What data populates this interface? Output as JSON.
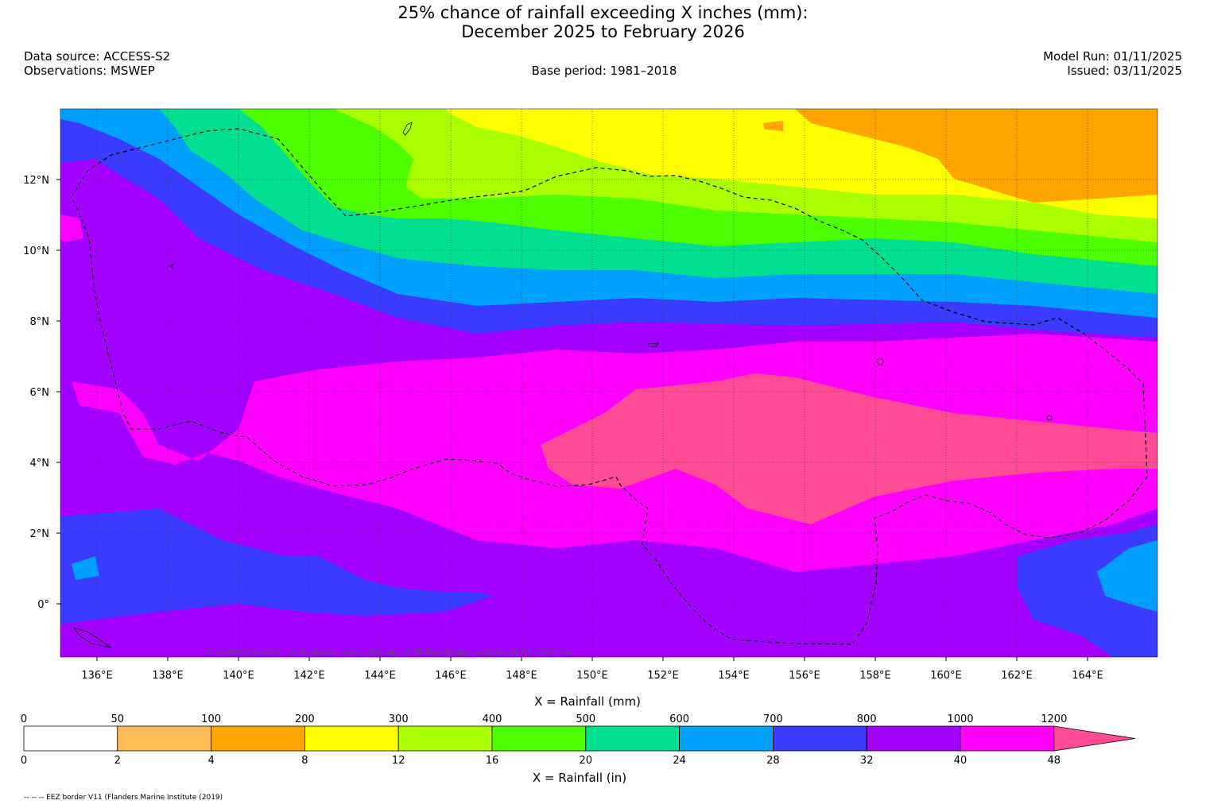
{
  "title_line1": "25% chance of rainfall exceeding X inches (mm):",
  "title_line2": "December 2025 to February 2026",
  "data_source": "Data source: ACCESS-S2",
  "observations": "Observations: MSWEP",
  "base_period": "Base period: 1981–2018",
  "model_run": "Model Run: 01/11/2025",
  "issued": "Issued: 03/11/2025",
  "copyright": "© Commonwealth of Australia 2025, Bureau of Meteorology, supported by COSPPac",
  "footnote": "-- -- -- EEZ border V11 (Flanders Marine Institute (2019)",
  "map": {
    "lon_labels": [
      "136°E",
      "138°E",
      "140°E",
      "142°E",
      "144°E",
      "146°E",
      "148°E",
      "150°E",
      "152°E",
      "154°E",
      "156°E",
      "158°E",
      "160°E",
      "162°E",
      "164°E"
    ],
    "lat_labels": [
      "12°N",
      "10°N",
      "8°N",
      "6°N",
      "4°N",
      "2°N",
      "0°"
    ]
  },
  "colorbar": {
    "title_mm": "X = Rainfall (mm)",
    "title_in": "X = Rainfall (in)",
    "mm_ticks": [
      "0",
      "50",
      "100",
      "200",
      "300",
      "400",
      "500",
      "600",
      "700",
      "800",
      "1000",
      "1200"
    ],
    "in_ticks": [
      "0",
      "2",
      "4",
      "8",
      "12",
      "16",
      "20",
      "24",
      "28",
      "32",
      "40",
      "48"
    ],
    "colors": [
      "#ffffff",
      "#ffbb55",
      "#ffa500",
      "#ffff00",
      "#aaff00",
      "#4dff00",
      "#00e090",
      "#00a0ff",
      "#3b3bff",
      "#a400ff",
      "#ff00ff",
      "#ff4b96"
    ]
  }
}
